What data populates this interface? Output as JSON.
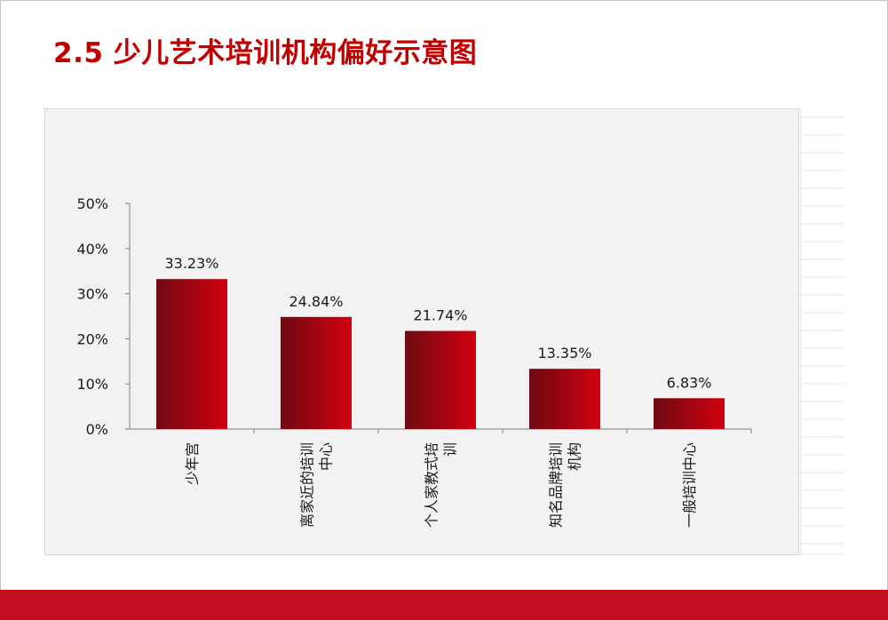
{
  "slide": {
    "title": "2.5 少儿艺术培训机构偏好示意图",
    "accent_color": "#c00000",
    "band_color": "#c40d1e"
  },
  "chart_data": {
    "type": "bar",
    "categories": [
      "少年宫",
      "离家近的培训中心",
      "个人家教式培训",
      "知名品牌培训机构",
      "一般培训中心"
    ],
    "category_label_lines": [
      [
        "少年宫"
      ],
      [
        "离家近的培训",
        "中心"
      ],
      [
        "个人家教式培",
        "训"
      ],
      [
        "知名品牌培训",
        "机构"
      ],
      [
        "一般培训中心"
      ]
    ],
    "values": [
      33.23,
      24.84,
      21.74,
      13.35,
      6.83
    ],
    "data_labels": [
      "33.23%",
      "24.84%",
      "21.74%",
      "13.35%",
      "6.83%"
    ],
    "y_ticks": [
      "0%",
      "10%",
      "20%",
      "30%",
      "40%",
      "50%"
    ],
    "ylim": [
      0,
      50
    ],
    "bar_color_dark": "#6e0a12",
    "bar_color_light": "#d20010",
    "grid": false,
    "legend": "none"
  }
}
